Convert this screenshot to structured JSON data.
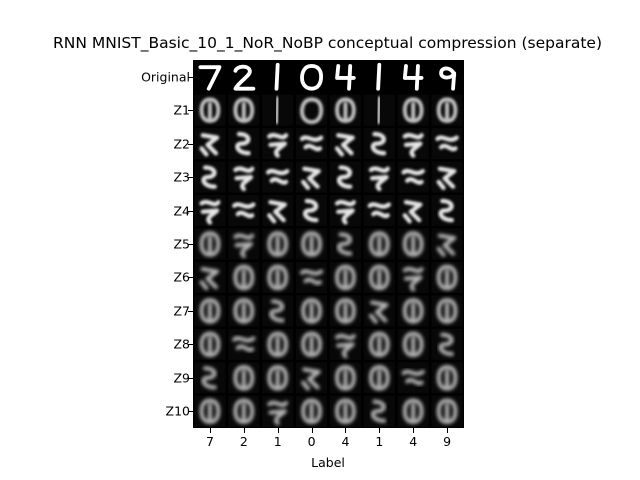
{
  "figure": {
    "title": "RNN MNIST_Basic_10_1_NoR_NoBP conceptual compression (separate)",
    "xlabel": "Label",
    "rows": [
      "Original",
      "Z1",
      "Z2",
      "Z3",
      "Z4",
      "Z5",
      "Z6",
      "Z7",
      "Z8",
      "Z9",
      "Z10"
    ],
    "columns": [
      "7",
      "2",
      "1",
      "0",
      "4",
      "1",
      "4",
      "9"
    ],
    "background_color": "#000000",
    "foreground_color": "#ffffff"
  }
}
